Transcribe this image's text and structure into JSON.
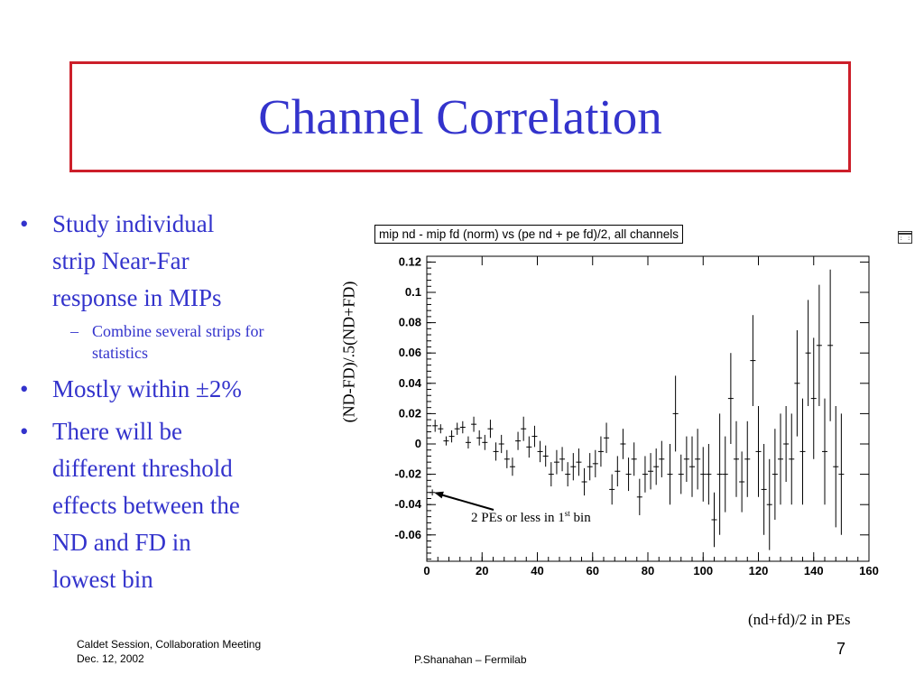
{
  "slide": {
    "title": "Channel Correlation",
    "page_number": "7",
    "footer_left_line1": "Caldet Session, Collaboration Meeting",
    "footer_left_line2": "Dec. 12, 2002",
    "footer_center": "P.Shanahan – Fermilab"
  },
  "bullets": {
    "b1_line1": "Study individual",
    "b1_line2": "strip  Near-Far",
    "b1_line3": "response in MIPs",
    "sub1_line1": "Combine several strips for",
    "sub1_line2": "statistics",
    "b2": "Mostly within ±2%",
    "b3_line1": "There will be",
    "b3_line2": "different threshold",
    "b3_line3": "effects between the",
    "b3_line4": "ND and FD in",
    "b3_line5": "lowest bin"
  },
  "chart_data": {
    "type": "scatter",
    "title": "mip nd - mip fd (norm) vs (pe nd + pe fd)/2, all channels",
    "xlabel": "(nd+fd)/2 in PEs",
    "ylabel": "(ND-FD)/.5(ND+FD)",
    "xlim": [
      0,
      160
    ],
    "ylim": [
      -0.08,
      0.125
    ],
    "xticks": [
      "0",
      "20",
      "40",
      "60",
      "80",
      "100",
      "120",
      "140",
      "160"
    ],
    "yticks": [
      "0.12",
      "0.1",
      "0.08",
      "0.06",
      "0.04",
      "0.02",
      "0",
      "-0.02",
      "-0.04",
      "-0.06"
    ],
    "annotation": {
      "text": "2 PEs or less in 1",
      "sup": "st",
      "tail": " bin",
      "points_to": [
        2,
        -0.032
      ]
    },
    "points": [
      [
        2,
        -0.032,
        0.002
      ],
      [
        3,
        0.012,
        0.004
      ],
      [
        5,
        0.01,
        0.003
      ],
      [
        7,
        0.002,
        0.003
      ],
      [
        9,
        0.005,
        0.004
      ],
      [
        11,
        0.01,
        0.004
      ],
      [
        13,
        0.011,
        0.004
      ],
      [
        15,
        0.001,
        0.004
      ],
      [
        17,
        0.013,
        0.005
      ],
      [
        19,
        0.004,
        0.005
      ],
      [
        21,
        0.001,
        0.005
      ],
      [
        23,
        0.01,
        0.006
      ],
      [
        25,
        -0.005,
        0.006
      ],
      [
        27,
        0.0,
        0.006
      ],
      [
        29,
        -0.01,
        0.006
      ],
      [
        31,
        -0.015,
        0.006
      ],
      [
        33,
        0.002,
        0.006
      ],
      [
        35,
        0.01,
        0.008
      ],
      [
        37,
        -0.002,
        0.007
      ],
      [
        39,
        0.005,
        0.007
      ],
      [
        41,
        -0.005,
        0.007
      ],
      [
        43,
        -0.008,
        0.007
      ],
      [
        45,
        -0.02,
        0.008
      ],
      [
        47,
        -0.012,
        0.008
      ],
      [
        49,
        -0.01,
        0.008
      ],
      [
        51,
        -0.02,
        0.008
      ],
      [
        53,
        -0.015,
        0.009
      ],
      [
        55,
        -0.012,
        0.009
      ],
      [
        57,
        -0.025,
        0.009
      ],
      [
        59,
        -0.015,
        0.009
      ],
      [
        61,
        -0.013,
        0.009
      ],
      [
        63,
        -0.005,
        0.01
      ],
      [
        65,
        0.004,
        0.01
      ],
      [
        67,
        -0.03,
        0.01
      ],
      [
        69,
        -0.018,
        0.01
      ],
      [
        71,
        0.0,
        0.01
      ],
      [
        73,
        -0.02,
        0.011
      ],
      [
        75,
        -0.01,
        0.011
      ],
      [
        77,
        -0.035,
        0.012
      ],
      [
        79,
        -0.02,
        0.012
      ],
      [
        81,
        -0.018,
        0.012
      ],
      [
        83,
        -0.015,
        0.012
      ],
      [
        85,
        -0.01,
        0.012
      ],
      [
        88,
        -0.02,
        0.02
      ],
      [
        90,
        0.02,
        0.025
      ],
      [
        92,
        -0.02,
        0.013
      ],
      [
        94,
        -0.01,
        0.015
      ],
      [
        96,
        -0.015,
        0.02
      ],
      [
        98,
        -0.01,
        0.02
      ],
      [
        100,
        -0.02,
        0.018
      ],
      [
        102,
        -0.02,
        0.02
      ],
      [
        104,
        -0.05,
        0.018
      ],
      [
        106,
        -0.02,
        0.04
      ],
      [
        108,
        -0.02,
        0.025
      ],
      [
        110,
        0.03,
        0.03
      ],
      [
        112,
        -0.01,
        0.025
      ],
      [
        114,
        -0.025,
        0.02
      ],
      [
        116,
        -0.01,
        0.025
      ],
      [
        118,
        0.055,
        0.03
      ],
      [
        120,
        -0.005,
        0.03
      ],
      [
        122,
        -0.03,
        0.03
      ],
      [
        124,
        -0.04,
        0.03
      ],
      [
        126,
        -0.02,
        0.03
      ],
      [
        128,
        -0.01,
        0.03
      ],
      [
        130,
        0.0,
        0.025
      ],
      [
        132,
        -0.01,
        0.03
      ],
      [
        134,
        0.04,
        0.035
      ],
      [
        136,
        -0.005,
        0.035
      ],
      [
        138,
        0.06,
        0.035
      ],
      [
        140,
        0.03,
        0.04
      ],
      [
        142,
        0.065,
        0.04
      ],
      [
        144,
        -0.005,
        0.035
      ],
      [
        146,
        0.065,
        0.05
      ],
      [
        148,
        -0.015,
        0.04
      ],
      [
        150,
        -0.02,
        0.04
      ]
    ]
  }
}
